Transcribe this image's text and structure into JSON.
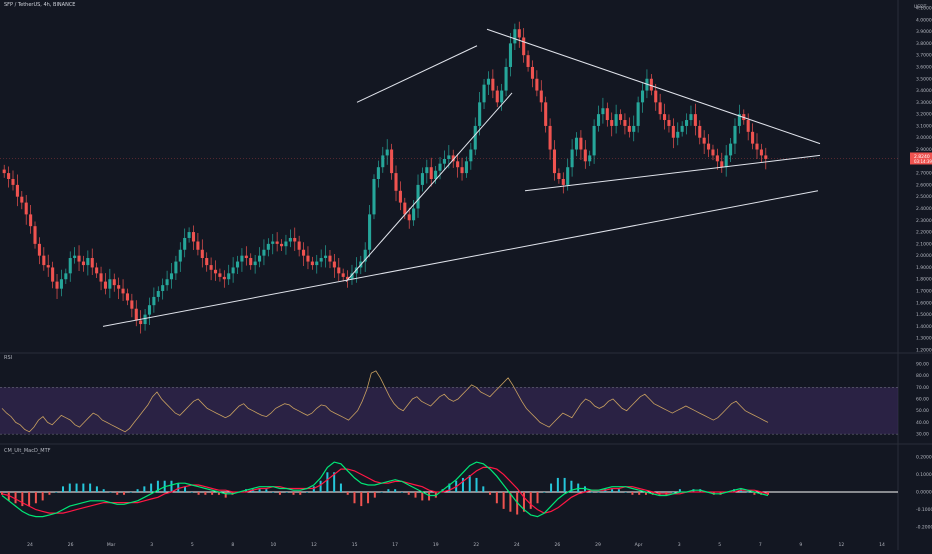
{
  "header": {
    "title": "SFP / TetherUS, 4h, BINANCE",
    "currency": "USDT"
  },
  "colors": {
    "background": "#131722",
    "up": "#26a69a",
    "down": "#ef5350",
    "trendline": "#e0e3eb",
    "rsi_line": "#c8a060",
    "rsi_band": "#3a2a5c",
    "macd_fast": "#00e676",
    "macd_slow": "#ff1744",
    "hist_up": "#26c6da",
    "hist_down": "#ef5350",
    "price_tag": "#ef5350"
  },
  "price_axis": {
    "ticks": [
      "4.1000",
      "4.0000",
      "3.9000",
      "3.8000",
      "3.7000",
      "3.6000",
      "3.5000",
      "3.4000",
      "3.3000",
      "3.2000",
      "3.1000",
      "3.0000",
      "2.9000",
      "2.8000",
      "2.7000",
      "2.6000",
      "2.5000",
      "2.4000",
      "2.3000",
      "2.2000",
      "2.1000",
      "2.0000",
      "1.9000",
      "1.8000",
      "1.7000",
      "1.6000",
      "1.5000",
      "1.4000",
      "1.3000",
      "1.2000"
    ],
    "last_price": "2.8240",
    "countdown": "03:14:39"
  },
  "rsi_pane": {
    "label": "RSI",
    "ticks": [
      "90.00",
      "80.00",
      "70.00",
      "60.00",
      "50.00",
      "40.00",
      "30.00"
    ]
  },
  "macd_pane": {
    "label": "CM_Ult_MacD_MTF",
    "ticks": [
      "0.2000",
      "0.1000",
      "0.0000",
      "-0.1000",
      "-0.2000"
    ]
  },
  "time_axis": {
    "labels": [
      "24",
      "26",
      "Mar",
      "3",
      "5",
      "8",
      "10",
      "12",
      "15",
      "17",
      "19",
      "22",
      "24",
      "26",
      "29",
      "Apr",
      "3",
      "5",
      "7",
      "9",
      "12",
      "14"
    ]
  },
  "chart_data": [
    {
      "type": "candlestick",
      "title": "SFP / TetherUS, 4h, BINANCE",
      "x_start_label": "24",
      "ylim": [
        1.2,
        4.1
      ],
      "last_close": 2.824,
      "close_series": [
        2.7,
        2.65,
        2.6,
        2.5,
        2.45,
        2.35,
        2.25,
        2.1,
        2.0,
        1.92,
        1.9,
        1.78,
        1.72,
        1.8,
        1.85,
        1.98,
        2.0,
        1.95,
        1.92,
        1.98,
        1.9,
        1.85,
        1.78,
        1.72,
        1.8,
        1.75,
        1.72,
        1.68,
        1.62,
        1.55,
        1.45,
        1.42,
        1.5,
        1.58,
        1.65,
        1.7,
        1.75,
        1.8,
        1.85,
        1.95,
        2.05,
        2.15,
        2.2,
        2.12,
        2.05,
        1.98,
        1.92,
        1.88,
        1.85,
        1.82,
        1.8,
        1.85,
        1.9,
        1.95,
        2.0,
        1.98,
        1.92,
        1.95,
        2.0,
        2.05,
        2.1,
        2.12,
        2.1,
        2.08,
        2.12,
        2.15,
        2.12,
        2.05,
        2.0,
        1.95,
        1.92,
        1.95,
        1.98,
        2.0,
        1.95,
        1.9,
        1.85,
        1.82,
        1.8,
        1.85,
        1.9,
        1.95,
        2.05,
        2.35,
        2.65,
        2.75,
        2.85,
        2.9,
        2.7,
        2.55,
        2.45,
        2.35,
        2.3,
        2.4,
        2.6,
        2.7,
        2.75,
        2.65,
        2.72,
        2.78,
        2.82,
        2.85,
        2.8,
        2.75,
        2.7,
        2.8,
        2.9,
        3.1,
        3.3,
        3.45,
        3.5,
        3.4,
        3.3,
        3.4,
        3.6,
        3.8,
        3.92,
        3.85,
        3.7,
        3.6,
        3.5,
        3.4,
        3.3,
        3.1,
        2.9,
        2.7,
        2.65,
        2.6,
        2.75,
        2.9,
        3.0,
        2.9,
        2.8,
        2.85,
        3.1,
        3.2,
        3.25,
        3.15,
        3.1,
        3.2,
        3.15,
        3.1,
        3.05,
        3.1,
        3.3,
        3.4,
        3.5,
        3.4,
        3.3,
        3.2,
        3.15,
        3.1,
        3.0,
        3.05,
        3.1,
        3.15,
        3.2,
        3.1,
        3.0,
        2.95,
        2.9,
        2.85,
        2.8,
        2.75,
        2.85,
        2.95,
        3.1,
        3.2,
        3.15,
        3.05,
        2.95,
        2.9,
        2.85,
        2.82
      ],
      "trendlines": [
        {
          "name": "lower-support",
          "from": [
            1.4,
            0
          ],
          "to": [
            2.55,
            1
          ]
        },
        {
          "name": "triangle-upper",
          "from": [
            3.92,
            0
          ],
          "to": [
            2.95,
            1
          ]
        },
        {
          "name": "triangle-lower",
          "from": [
            2.55,
            0
          ],
          "to": [
            2.85,
            1
          ]
        }
      ]
    },
    {
      "type": "line",
      "title": "RSI",
      "ylim": [
        25,
        95
      ],
      "bands": [
        30,
        70
      ],
      "values": [
        52,
        48,
        45,
        40,
        38,
        34,
        32,
        36,
        42,
        45,
        40,
        38,
        42,
        46,
        44,
        42,
        38,
        36,
        40,
        44,
        48,
        46,
        42,
        40,
        38,
        36,
        34,
        32,
        35,
        40,
        45,
        50,
        55,
        62,
        66,
        60,
        56,
        52,
        48,
        46,
        50,
        54,
        58,
        60,
        56,
        52,
        50,
        48,
        46,
        44,
        46,
        50,
        54,
        56,
        52,
        50,
        48,
        46,
        45,
        48,
        52,
        54,
        56,
        55,
        52,
        50,
        48,
        46,
        48,
        52,
        55,
        54,
        50,
        48,
        46,
        44,
        42,
        46,
        50,
        58,
        68,
        82,
        84,
        78,
        70,
        62,
        56,
        52,
        50,
        55,
        60,
        62,
        58,
        56,
        54,
        58,
        62,
        64,
        60,
        58,
        60,
        64,
        68,
        72,
        70,
        66,
        64,
        62,
        66,
        70,
        74,
        78,
        72,
        65,
        58,
        52,
        48,
        44,
        40,
        38,
        36,
        40,
        44,
        48,
        46,
        44,
        50,
        56,
        60,
        58,
        54,
        52,
        54,
        58,
        60,
        56,
        52,
        50,
        54,
        58,
        62,
        64,
        60,
        56,
        54,
        52,
        50,
        48,
        50,
        52,
        54,
        52,
        50,
        48,
        46,
        44,
        42,
        44,
        48,
        52,
        56,
        58,
        54,
        50,
        48,
        46,
        44,
        42,
        40
      ]
    },
    {
      "type": "line",
      "title": "CM_Ult_MacD_MTF",
      "ylim": [
        -0.25,
        0.25
      ],
      "macd": [
        -0.02,
        -0.05,
        -0.08,
        -0.11,
        -0.13,
        -0.14,
        -0.14,
        -0.13,
        -0.12,
        -0.1,
        -0.08,
        -0.07,
        -0.06,
        -0.05,
        -0.05,
        -0.05,
        -0.06,
        -0.07,
        -0.07,
        -0.06,
        -0.05,
        -0.03,
        -0.01,
        0.01,
        0.03,
        0.04,
        0.05,
        0.05,
        0.04,
        0.03,
        0.02,
        0.01,
        0.0,
        -0.01,
        -0.01,
        0.0,
        0.01,
        0.02,
        0.03,
        0.03,
        0.03,
        0.02,
        0.02,
        0.01,
        0.01,
        0.02,
        0.04,
        0.08,
        0.14,
        0.17,
        0.16,
        0.12,
        0.08,
        0.05,
        0.04,
        0.04,
        0.05,
        0.06,
        0.07,
        0.06,
        0.04,
        0.02,
        0.0,
        -0.02,
        -0.02,
        0.01,
        0.04,
        0.07,
        0.11,
        0.15,
        0.17,
        0.16,
        0.13,
        0.09,
        0.04,
        -0.01,
        -0.06,
        -0.1,
        -0.13,
        -0.14,
        -0.12,
        -0.08,
        -0.04,
        -0.01,
        0.01,
        0.02,
        0.02,
        0.01,
        0.01,
        0.02,
        0.03,
        0.03,
        0.03,
        0.02,
        0.01,
        0.0,
        -0.01,
        -0.02,
        -0.02,
        -0.01,
        0.0,
        0.0,
        0.01,
        0.01,
        0.0,
        -0.01,
        -0.01,
        0.0,
        0.01,
        0.02,
        0.01,
        0.0,
        -0.01,
        -0.02
      ],
      "signal": [
        -0.01,
        -0.02,
        -0.04,
        -0.06,
        -0.08,
        -0.1,
        -0.11,
        -0.12,
        -0.12,
        -0.12,
        -0.11,
        -0.1,
        -0.09,
        -0.08,
        -0.07,
        -0.06,
        -0.06,
        -0.06,
        -0.06,
        -0.06,
        -0.06,
        -0.05,
        -0.04,
        -0.03,
        -0.01,
        0.0,
        0.02,
        0.03,
        0.04,
        0.04,
        0.03,
        0.02,
        0.01,
        0.01,
        0.0,
        0.0,
        0.0,
        0.01,
        0.02,
        0.02,
        0.03,
        0.03,
        0.02,
        0.02,
        0.02,
        0.02,
        0.02,
        0.04,
        0.07,
        0.1,
        0.13,
        0.13,
        0.12,
        0.1,
        0.08,
        0.06,
        0.05,
        0.05,
        0.06,
        0.06,
        0.05,
        0.04,
        0.03,
        0.01,
        0.0,
        0.0,
        0.01,
        0.03,
        0.06,
        0.09,
        0.12,
        0.14,
        0.14,
        0.13,
        0.1,
        0.06,
        0.02,
        -0.03,
        -0.07,
        -0.1,
        -0.12,
        -0.11,
        -0.09,
        -0.06,
        -0.03,
        -0.01,
        0.0,
        0.01,
        0.01,
        0.01,
        0.02,
        0.02,
        0.03,
        0.03,
        0.02,
        0.01,
        0.0,
        -0.01,
        -0.01,
        -0.01,
        -0.01,
        0.0,
        0.0,
        0.0,
        0.0,
        0.0,
        0.0,
        0.0,
        0.0,
        0.01,
        0.01,
        0.01,
        0.0,
        -0.01
      ]
    }
  ]
}
